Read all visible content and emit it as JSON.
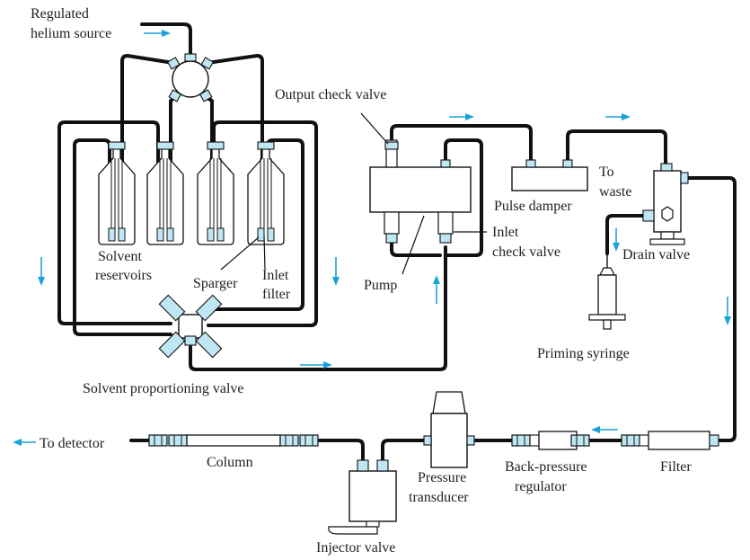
{
  "labels": {
    "helium_line1": "Regulated",
    "helium_line2": "helium source",
    "solvent_reservoirs_line1": "Solvent",
    "solvent_reservoirs_line2": "reservoirs",
    "sparger": "Sparger",
    "inlet_filter_line1": "Inlet",
    "inlet_filter_line2": "filter",
    "solvent_proportioning_valve": "Solvent proportioning valve",
    "output_check_valve": "Output check valve",
    "pump": "Pump",
    "inlet_check_valve_line1": "Inlet",
    "inlet_check_valve_line2": "check valve",
    "pulse_damper": "Pulse damper",
    "to_waste_line1": "To",
    "to_waste_line2": "waste",
    "drain_valve": "Drain valve",
    "priming_syringe": "Priming syringe",
    "to_detector": "To detector",
    "column": "Column",
    "injector_valve": "Injector valve",
    "pressure_transducer_line1": "Pressure",
    "pressure_transducer_line2": "transducer",
    "back_pressure_regulator_line1": "Back-pressure",
    "back_pressure_regulator_line2": "regulator",
    "filter": "Filter"
  },
  "colors": {
    "flow_arrow": "#1aa3d9",
    "fitting_fill": "#bfe7f3",
    "tubing": "#111111"
  }
}
